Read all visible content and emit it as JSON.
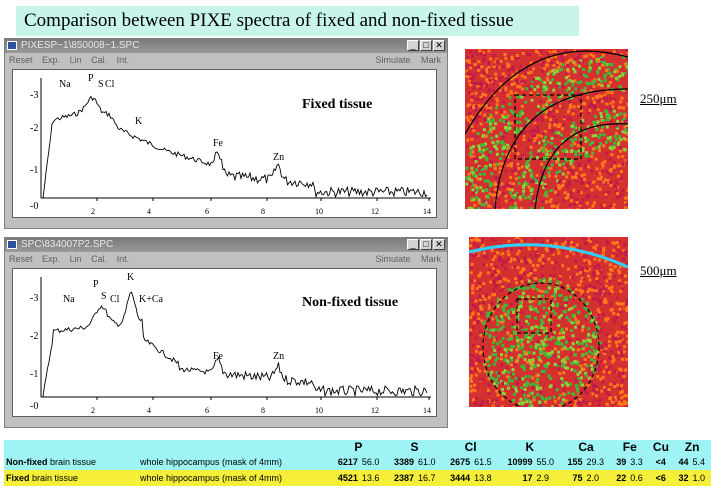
{
  "slide_title": "Comparison between PIXE spectra of fixed and non-fixed tissue sections",
  "menu": [
    "Reset",
    "Exp.",
    "Lin",
    "Cal.",
    "Int."
  ],
  "menu_right": [
    "Simulate",
    "Mark"
  ],
  "window_buttons": [
    "_",
    "□",
    "✕"
  ],
  "windows": [
    {
      "title": "PIXESP~1\\850008~1.SPC",
      "label": "Fixed tissue",
      "peaks": [
        "Na",
        "P",
        "S",
        "Cl",
        "K",
        "Fe",
        "Zn"
      ],
      "scale_bar": "250μm"
    },
    {
      "title": "SPC\\834007P2.SPC",
      "label": "Non-fixed tissue",
      "peaks": [
        "Na",
        "P",
        "S",
        "Cl",
        "K",
        "K+Ca",
        "Fe",
        "Zn"
      ],
      "scale_bar": "500μm"
    }
  ],
  "axis": {
    "x_ticks": [
      "2",
      "4",
      "6",
      "8",
      "10",
      "12",
      "14"
    ],
    "y_ticks": [
      "-3",
      "-2",
      "-1",
      "-0"
    ]
  },
  "table": {
    "columns": [
      "P",
      "S",
      "Cl",
      "K",
      "Ca",
      "Fe",
      "Cu",
      "Zn"
    ],
    "rows": [
      {
        "name_bold": "Non-fixed",
        "name_rest": " brain tissue",
        "region": "whole hippocampus (mask of 4mm)",
        "values": [
          "6217",
          "56.0",
          "3389",
          "61.0",
          "2675",
          "61.5",
          "10999",
          "55.0",
          "155",
          "29.3",
          "39",
          "3.3",
          "<4",
          "",
          "44",
          "5.4"
        ]
      },
      {
        "name_bold": "Fixed",
        "name_rest": " brain tissue",
        "region": "whole hippocampus (mask of 4mm)",
        "values": [
          "4521",
          "13.6",
          "2387",
          "16.7",
          "3444",
          "13.8",
          "17",
          "2.9",
          "75",
          "2.0",
          "22",
          "0.6",
          "<6",
          "",
          "32",
          "1.0"
        ]
      }
    ]
  },
  "colors": {
    "title_bg": "#c8f5ea",
    "row1_bg": "#9ef4f4",
    "row2_bg": "#f5ef3a"
  }
}
